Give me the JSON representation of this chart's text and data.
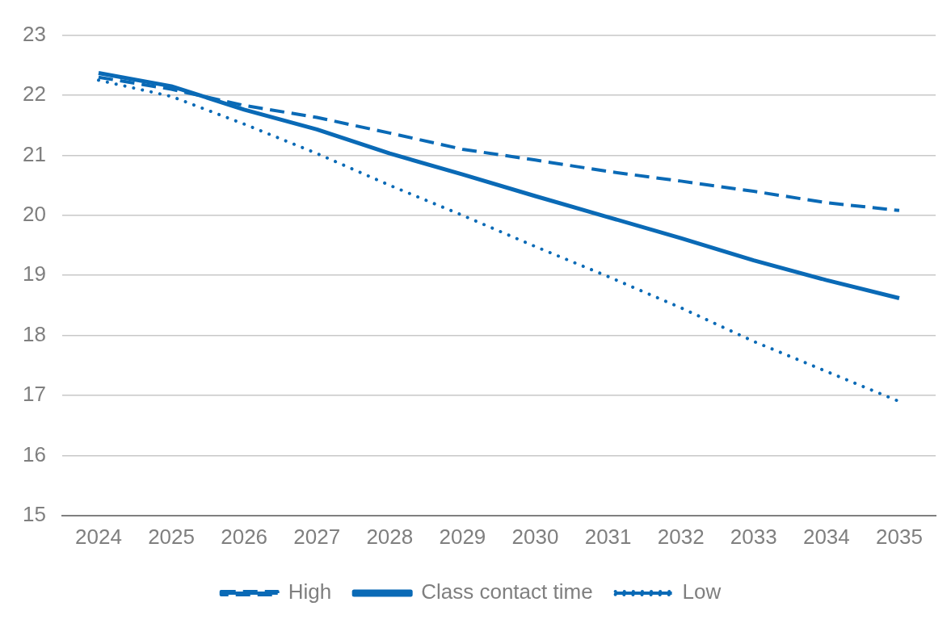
{
  "chart_data": {
    "type": "line",
    "categories": [
      "2024",
      "2025",
      "2026",
      "2027",
      "2028",
      "2029",
      "2030",
      "2031",
      "2032",
      "2033",
      "2034",
      "2035"
    ],
    "series": [
      {
        "name": "High",
        "color": "#0a6ab6",
        "line_style": "dashed",
        "values": [
          22.3,
          22.1,
          21.83,
          21.63,
          21.37,
          21.1,
          20.92,
          20.73,
          20.57,
          20.4,
          20.21,
          20.08
        ]
      },
      {
        "name": "Class contact time",
        "color": "#0a6ab6",
        "line_style": "solid",
        "values": [
          22.37,
          22.15,
          21.76,
          21.43,
          21.03,
          20.68,
          20.32,
          19.97,
          19.62,
          19.25,
          18.92,
          18.62
        ]
      },
      {
        "name": "Low",
        "color": "#0a6ab6",
        "line_style": "dotted",
        "values": [
          22.25,
          21.98,
          21.52,
          21.03,
          20.5,
          20.0,
          19.48,
          18.98,
          18.46,
          17.9,
          17.4,
          16.9
        ]
      }
    ],
    "ylim": [
      15,
      23
    ],
    "yticks": [
      15,
      16,
      17,
      18,
      19,
      20,
      21,
      22,
      23
    ],
    "grid": "y",
    "legend": "bottom",
    "marker": "none"
  }
}
